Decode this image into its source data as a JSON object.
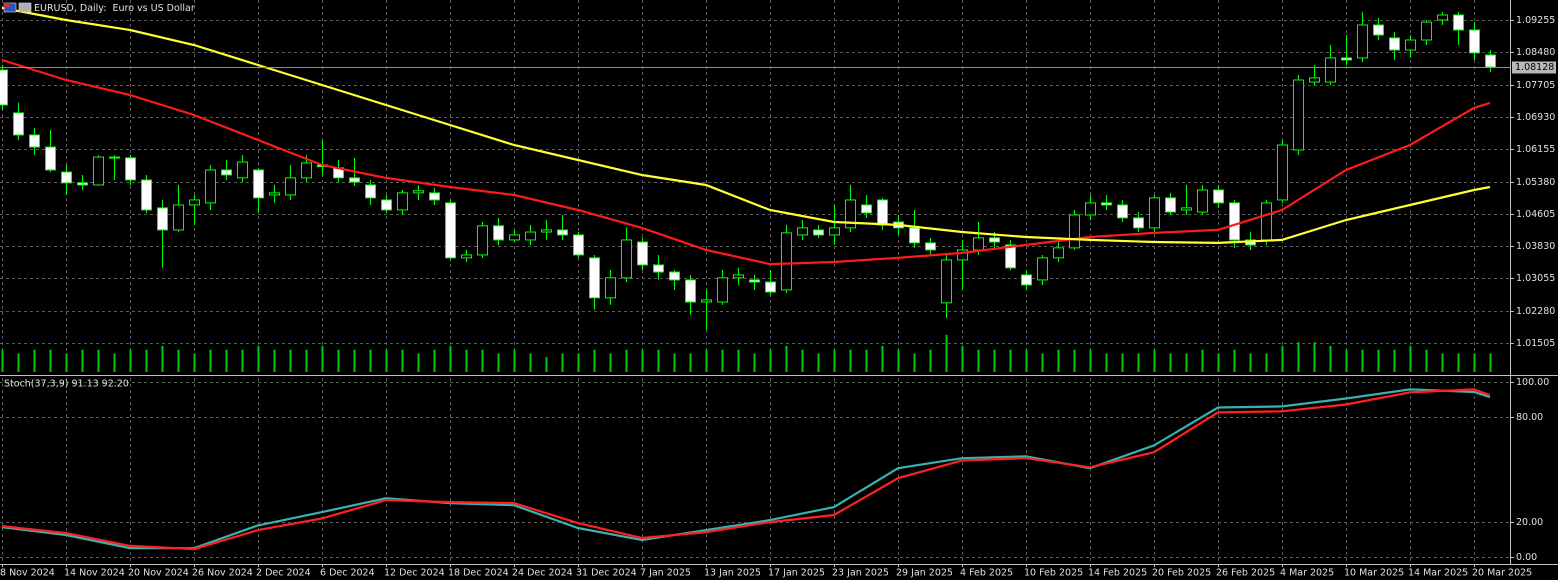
{
  "chart_data": [
    {
      "type": "candlestick",
      "title": "EURUSD, Daily:  Euro vs US Dollar",
      "categories": [
        "8 Nov 2024",
        null,
        null,
        null,
        "14 Nov 2024",
        null,
        null,
        null,
        "20 Nov 2024",
        null,
        null,
        null,
        "26 Nov 2024",
        null,
        null,
        null,
        "2 Dec 2024",
        null,
        null,
        null,
        "6 Dec 2024",
        null,
        null,
        null,
        "12 Dec 2024",
        null,
        null,
        null,
        "18 Dec 2024",
        null,
        null,
        null,
        "24 Dec 2024",
        null,
        null,
        null,
        "31 Dec 2024",
        null,
        null,
        null,
        "7 Jan 2025",
        null,
        null,
        null,
        "13 Jan 2025",
        null,
        null,
        null,
        "17 Jan 2025",
        null,
        null,
        null,
        "23 Jan 2025",
        null,
        null,
        null,
        "29 Jan 2025",
        null,
        null,
        null,
        "4 Feb 2025",
        null,
        null,
        null,
        "10 Feb 2025",
        null,
        null,
        null,
        "14 Feb 2025",
        null,
        null,
        null,
        "20 Feb 2025",
        null,
        null,
        null,
        "26 Feb 2025",
        null,
        null,
        null,
        "4 Mar 2025",
        null,
        null,
        null,
        "10 Mar 2025",
        null,
        null,
        null,
        "14 Mar 2025",
        null,
        null,
        null,
        "20 Mar 2025",
        null
      ],
      "open": [
        1.0806,
        1.0703,
        1.065,
        1.0621,
        1.0561,
        1.0535,
        1.053,
        1.0597,
        1.0595,
        1.0542,
        1.0475,
        1.0422,
        1.0482,
        1.0487,
        1.0566,
        1.0547,
        1.0566,
        1.0506,
        1.0506,
        1.0547,
        1.0578,
        1.0571,
        1.0547,
        1.053,
        1.0494,
        1.047,
        1.0511,
        1.0511,
        1.0487,
        1.0355,
        1.0362,
        1.0432,
        1.0398,
        1.0398,
        1.0417,
        1.0422,
        1.041,
        1.0355,
        1.0259,
        1.0307,
        1.0393,
        1.0338,
        1.0321,
        1.0302,
        1.0249,
        1.0249,
        1.0307,
        1.0302,
        1.0297,
        1.0278,
        1.041,
        1.0422,
        1.041,
        1.0427,
        1.0482,
        1.0494,
        1.0441,
        1.0427,
        1.0391,
        1.0247,
        1.035,
        1.0374,
        1.0403,
        1.0386,
        1.0314,
        1.0302,
        1.0355,
        1.0379,
        1.0458,
        1.0487,
        1.0482,
        1.0451,
        1.0427,
        1.0499,
        1.047,
        1.0465,
        1.0518,
        1.0487,
        1.0398,
        1.0398,
        1.0494,
        1.0614,
        1.0777,
        1.0777,
        1.0835,
        1.0835,
        1.0914,
        1.0883,
        1.0854,
        1.0878,
        1.0926,
        1.0938,
        1.0902,
        1.0842
      ],
      "high": [
        1.0818,
        1.0727,
        1.0667,
        1.0662,
        1.0578,
        1.0554,
        1.0602,
        1.0602,
        1.0602,
        1.0554,
        1.0494,
        1.053,
        1.0506,
        1.0578,
        1.059,
        1.0602,
        1.0571,
        1.053,
        1.0578,
        1.0602,
        1.0638,
        1.059,
        1.0595,
        1.0542,
        1.0506,
        1.0518,
        1.053,
        1.0523,
        1.0494,
        1.0374,
        1.0441,
        1.0451,
        1.0422,
        1.0434,
        1.0446,
        1.0458,
        1.0417,
        1.0362,
        1.0326,
        1.0427,
        1.0403,
        1.0362,
        1.0326,
        1.0314,
        1.0278,
        1.0326,
        1.0331,
        1.0314,
        1.0326,
        1.0434,
        1.0446,
        1.0434,
        1.0482,
        1.053,
        1.0506,
        1.0499,
        1.0458,
        1.047,
        1.0403,
        1.0362,
        1.0398,
        1.0441,
        1.0417,
        1.0398,
        1.0326,
        1.0362,
        1.0398,
        1.047,
        1.0506,
        1.0506,
        1.0494,
        1.0465,
        1.0506,
        1.0511,
        1.053,
        1.053,
        1.053,
        1.0494,
        1.0417,
        1.0494,
        1.0638,
        1.0794,
        1.0818,
        1.0866,
        1.089,
        1.0945,
        1.0931,
        1.0897,
        1.089,
        1.0926,
        1.0945,
        1.0945,
        1.0921,
        1.0854
      ],
      "low": [
        1.071,
        1.0638,
        1.0602,
        1.0561,
        1.0506,
        1.0518,
        1.0528,
        1.0542,
        1.053,
        1.0463,
        1.0331,
        1.0417,
        1.0434,
        1.047,
        1.0542,
        1.0537,
        1.0463,
        1.0487,
        1.0494,
        1.0537,
        1.0554,
        1.0535,
        1.0528,
        1.0482,
        1.0463,
        1.0458,
        1.0494,
        1.0482,
        1.035,
        1.0345,
        1.0355,
        1.0386,
        1.0393,
        1.0386,
        1.0398,
        1.0398,
        1.0355,
        1.023,
        1.0242,
        1.0297,
        1.0326,
        1.0302,
        1.0278,
        1.0218,
        1.0182,
        1.0242,
        1.029,
        1.0278,
        1.0266,
        1.0271,
        1.0398,
        1.0403,
        1.0386,
        1.0417,
        1.0451,
        1.0422,
        1.041,
        1.0379,
        1.0362,
        1.0211,
        1.0278,
        1.0362,
        1.0379,
        1.0326,
        1.0278,
        1.029,
        1.0345,
        1.0374,
        1.0446,
        1.047,
        1.0441,
        1.0417,
        1.0417,
        1.0458,
        1.0458,
        1.0458,
        1.0475,
        1.0379,
        1.0374,
        1.0386,
        1.0487,
        1.0602,
        1.077,
        1.077,
        1.0818,
        1.0825,
        1.0878,
        1.083,
        1.0835,
        1.0866,
        1.0914,
        1.0866,
        1.083,
        1.0801
      ],
      "close": [
        1.0722,
        1.065,
        1.0621,
        1.0566,
        1.0535,
        1.053,
        1.0597,
        1.0595,
        1.0542,
        1.047,
        1.0422,
        1.0482,
        1.0494,
        1.0566,
        1.0554,
        1.0585,
        1.0499,
        1.0511,
        1.0547,
        1.0583,
        1.0574,
        1.0547,
        1.0537,
        1.0499,
        1.047,
        1.0511,
        1.0516,
        1.0494,
        1.0355,
        1.0362,
        1.0432,
        1.0398,
        1.041,
        1.0417,
        1.0422,
        1.041,
        1.0362,
        1.0259,
        1.0307,
        1.0398,
        1.0338,
        1.0321,
        1.0302,
        1.0249,
        1.0254,
        1.0307,
        1.0314,
        1.0297,
        1.0273,
        1.0415,
        1.0427,
        1.041,
        1.0427,
        1.0494,
        1.0463,
        1.0434,
        1.0427,
        1.0391,
        1.0374,
        1.035,
        1.0374,
        1.0403,
        1.0393,
        1.0331,
        1.029,
        1.0355,
        1.0379,
        1.0458,
        1.0487,
        1.0482,
        1.0451,
        1.0427,
        1.0499,
        1.0465,
        1.0475,
        1.0518,
        1.0487,
        1.0398,
        1.0386,
        1.0487,
        1.0626,
        1.0782,
        1.0787,
        1.0835,
        1.083,
        1.0914,
        1.089,
        1.0854,
        1.0878,
        1.0921,
        1.0938,
        1.0902,
        1.0847,
        1.0813
      ],
      "up_color": "#000000",
      "down_color": "#ffffff",
      "wick_color": "#00ff00",
      "series": [
        {
          "color": "#ff1a1a",
          "x": [
            0,
            4,
            8,
            12,
            16,
            20,
            24,
            28,
            32,
            36,
            40,
            44,
            48,
            52,
            56,
            60,
            64,
            68,
            72,
            76,
            80,
            84,
            88,
            92,
            93
          ],
          "values": [
            1.083,
            1.0782,
            1.0746,
            1.0698,
            1.0638,
            1.0578,
            1.0547,
            1.0525,
            1.0506,
            1.047,
            1.0427,
            1.0374,
            1.034,
            1.0345,
            1.0355,
            1.0367,
            1.0386,
            1.0405,
            1.0415,
            1.0422,
            1.047,
            1.0566,
            1.0626,
            1.0715,
            1.0727
          ]
        },
        {
          "color": "#ffff33",
          "x": [
            0,
            4,
            8,
            12,
            16,
            20,
            24,
            28,
            32,
            36,
            40,
            44,
            48,
            52,
            56,
            60,
            64,
            68,
            72,
            76,
            80,
            84,
            88,
            92,
            93
          ],
          "values": [
            1.0955,
            1.0926,
            1.0902,
            1.0866,
            1.0818,
            1.077,
            1.0722,
            1.0674,
            1.0626,
            1.059,
            1.0554,
            1.053,
            1.047,
            1.0441,
            1.0434,
            1.0417,
            1.0405,
            1.0398,
            1.0393,
            1.0391,
            1.0398,
            1.0446,
            1.0482,
            1.0518,
            1.0525
          ]
        }
      ],
      "volume": {
        "color": "#00cc00",
        "ylim": [
          0,
          100
        ],
        "values": [
          6,
          5,
          6,
          6,
          5,
          6,
          6,
          5,
          6,
          6,
          7,
          6,
          5,
          6,
          6,
          6,
          7,
          6,
          6,
          6,
          7,
          6,
          6,
          6,
          6,
          6,
          5,
          6,
          7,
          6,
          6,
          5,
          6,
          5,
          4,
          5,
          5,
          6,
          5,
          6,
          6,
          6,
          5,
          5,
          6,
          6,
          6,
          5,
          6,
          7,
          6,
          5,
          6,
          6,
          6,
          7,
          6,
          5,
          6,
          10,
          7,
          6,
          6,
          6,
          6,
          5,
          6,
          6,
          6,
          5,
          5,
          5,
          6,
          5,
          5,
          6,
          5,
          6,
          5,
          5,
          7,
          8,
          8,
          7,
          6,
          6,
          6,
          6,
          7,
          6,
          5,
          5,
          5,
          5
        ]
      },
      "last_price": 1.08128,
      "ylim": [
        1.0081,
        1.0974
      ],
      "yticks": [
        1.09255,
        {
          "value": 1.0848,
          "label": "1.08480"
        },
        1.07705,
        {
          "value": 1.0693,
          "label": "1.06930"
        },
        1.06155,
        {
          "value": 1.0538,
          "label": "1.05380"
        },
        1.04605,
        {
          "value": 1.0383,
          "label": "1.03830"
        },
        1.03055,
        {
          "value": 1.0228,
          "label": "1.02280"
        },
        1.01505
      ],
      "grid": true
    },
    {
      "type": "line",
      "title": "Stoch(37,3,9) 91.13 92.20",
      "x": [
        0,
        4,
        8,
        12,
        16,
        20,
        24,
        28,
        32,
        36,
        40,
        44,
        48,
        52,
        56,
        60,
        64,
        68,
        72,
        76,
        80,
        84,
        88,
        92,
        93
      ],
      "series": [
        {
          "color": "#3ab0b0",
          "values": [
            17,
            12.5,
            5,
            5,
            18,
            25.6,
            33.5,
            30.7,
            29.5,
            16.5,
            9.7,
            15.3,
            21,
            28.4,
            50.6,
            56.3,
            57.4,
            50.6,
            63.6,
            85.2,
            85.8,
            90.3,
            95.5,
            94,
            91.13
          ]
        },
        {
          "color": "#ff2020",
          "values": [
            17.6,
            13.6,
            6.3,
            4.5,
            15.3,
            22,
            32.4,
            31.3,
            30.7,
            19.3,
            10.8,
            14.2,
            19.9,
            23.9,
            44.9,
            55,
            56.3,
            51.1,
            59.7,
            82.4,
            83,
            86.9,
            93.8,
            95.5,
            92.2
          ]
        }
      ],
      "ylim": [
        -4,
        102
      ],
      "yticks": [
        {
          "value": 100,
          "label": "100.00"
        },
        {
          "value": 80,
          "label": "80.00"
        },
        {
          "value": 20,
          "label": "20.00"
        },
        {
          "value": 0,
          "label": "0.00"
        }
      ],
      "grid": true
    }
  ]
}
